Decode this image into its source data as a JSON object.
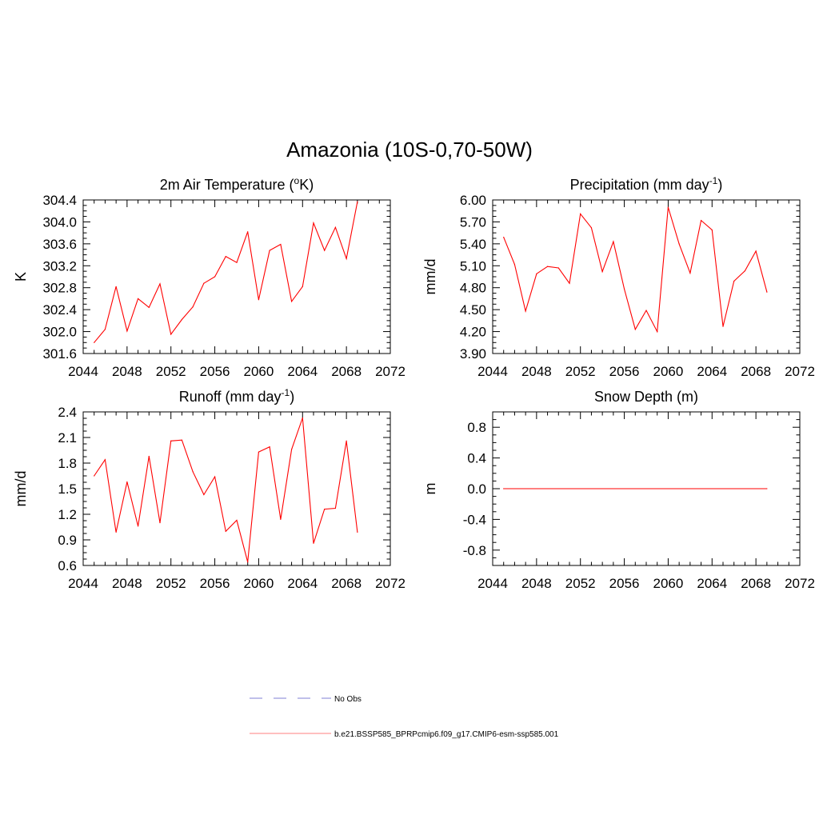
{
  "figure": {
    "title": "Amazonia (10S-0,70-50W)"
  },
  "legend": {
    "placement": "bottom-center",
    "entries": [
      {
        "label": "No Obs",
        "color": "#9999dd",
        "style": "dashed"
      },
      {
        "label": "b.e21.BSSP585_BPRPcmip6.f09_g17.CMIP6-esm-ssp585.001",
        "color": "#ff9999",
        "style": "solid"
      }
    ]
  },
  "chart_data": [
    {
      "type": "line",
      "title": "2m Air Temperature (",
      "title_sup": "o",
      "title_after": "K)",
      "xlabel": "",
      "ylabel": "K",
      "xlim": [
        2044,
        2072
      ],
      "ylim": [
        301.6,
        304.4
      ],
      "xticks": [
        2044,
        2048,
        2052,
        2056,
        2060,
        2064,
        2068,
        2072
      ],
      "yticks": [
        "301.6",
        "302.0",
        "302.4",
        "302.8",
        "303.2",
        "303.6",
        "304.0",
        "304.4"
      ],
      "grid": false,
      "series": [
        {
          "color": "#ff0000",
          "x": [
            2045,
            2046,
            2047,
            2048,
            2049,
            2050,
            2051,
            2052,
            2053,
            2054,
            2055,
            2056,
            2057,
            2058,
            2059,
            2060,
            2061,
            2062,
            2063,
            2064,
            2065,
            2066,
            2067,
            2068,
            2069
          ],
          "y": [
            301.8,
            302.04,
            302.82,
            302.01,
            302.6,
            302.44,
            302.87,
            301.95,
            302.22,
            302.45,
            302.88,
            303.0,
            303.37,
            303.26,
            303.82,
            302.58,
            303.48,
            303.59,
            302.55,
            302.82,
            303.98,
            303.48,
            303.9,
            303.33,
            304.37
          ]
        }
      ]
    },
    {
      "type": "line",
      "title": "Precipitation (mm day",
      "title_sup": "-1",
      "title_after": ")",
      "xlabel": "",
      "ylabel": "mm/d",
      "xlim": [
        2044,
        2072
      ],
      "ylim": [
        3.9,
        6.0
      ],
      "xticks": [
        2044,
        2048,
        2052,
        2056,
        2060,
        2064,
        2068,
        2072
      ],
      "yticks": [
        "3.90",
        "4.20",
        "4.50",
        "4.80",
        "5.10",
        "5.40",
        "5.70",
        "6.00"
      ],
      "grid": false,
      "series": [
        {
          "color": "#ff0000",
          "x": [
            2045,
            2046,
            2047,
            2048,
            2049,
            2050,
            2051,
            2052,
            2053,
            2054,
            2055,
            2056,
            2057,
            2058,
            2059,
            2060,
            2061,
            2062,
            2063,
            2064,
            2065,
            2066,
            2067,
            2068,
            2069
          ],
          "y": [
            5.49,
            5.12,
            4.48,
            4.99,
            5.09,
            5.07,
            4.86,
            5.81,
            5.62,
            5.02,
            5.43,
            4.78,
            4.23,
            4.49,
            4.2,
            5.9,
            5.4,
            5.0,
            5.72,
            5.59,
            4.27,
            4.89,
            5.03,
            5.3,
            4.74
          ]
        }
      ]
    },
    {
      "type": "line",
      "title": "Runoff (mm day",
      "title_sup": "-1",
      "title_after": ")",
      "xlabel": "",
      "ylabel": "mm/d",
      "xlim": [
        2044,
        2072
      ],
      "ylim": [
        0.6,
        2.4
      ],
      "xticks": [
        2044,
        2048,
        2052,
        2056,
        2060,
        2064,
        2068,
        2072
      ],
      "yticks": [
        "0.6",
        "0.9",
        "1.2",
        "1.5",
        "1.8",
        "2.1",
        "2.4"
      ],
      "grid": false,
      "series": [
        {
          "color": "#ff0000",
          "x": [
            2045,
            2046,
            2047,
            2048,
            2049,
            2050,
            2051,
            2052,
            2053,
            2054,
            2055,
            2056,
            2057,
            2058,
            2059,
            2060,
            2061,
            2062,
            2063,
            2064,
            2065,
            2066,
            2067,
            2068,
            2069
          ],
          "y": [
            1.65,
            1.84,
            0.99,
            1.58,
            1.06,
            1.88,
            1.1,
            2.06,
            2.07,
            1.7,
            1.43,
            1.64,
            1.0,
            1.13,
            0.64,
            1.93,
            1.99,
            1.14,
            1.96,
            2.33,
            0.86,
            1.26,
            1.27,
            2.06,
            0.99
          ]
        }
      ]
    },
    {
      "type": "line",
      "title": "Snow Depth (m)",
      "title_sup": "",
      "title_after": "",
      "xlabel": "",
      "ylabel": "m",
      "xlim": [
        2044,
        2072
      ],
      "ylim": [
        -1.0,
        1.0
      ],
      "xticks": [
        2044,
        2048,
        2052,
        2056,
        2060,
        2064,
        2068,
        2072
      ],
      "yticks": [
        "-0.8",
        "-0.4",
        "0.0",
        "0.4",
        "0.8"
      ],
      "ytick_values": [
        -0.8,
        -0.4,
        0.0,
        0.4,
        0.8
      ],
      "grid": false,
      "series": [
        {
          "color": "#ff0000",
          "x": [
            2045,
            2069
          ],
          "y": [
            0.0,
            0.0
          ]
        }
      ]
    }
  ]
}
